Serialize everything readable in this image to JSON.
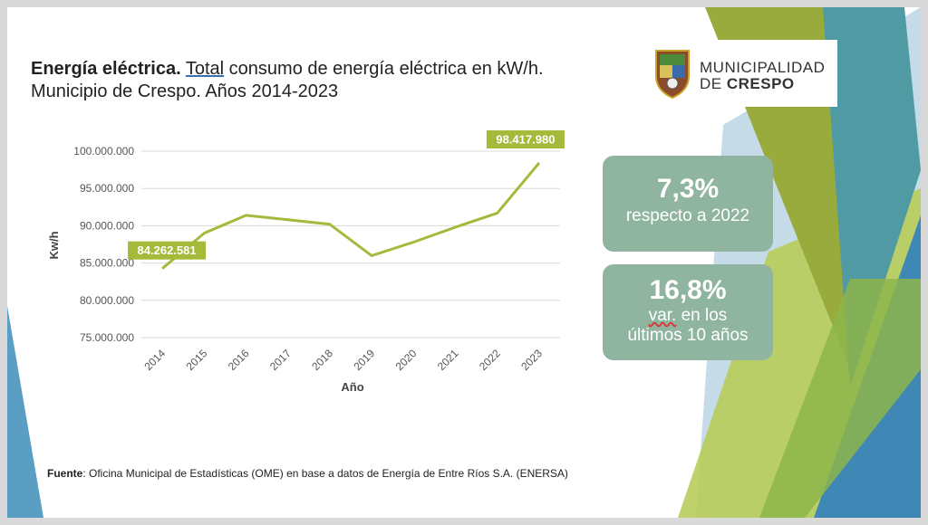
{
  "slide": {
    "title_bold": "Energía eléctrica.",
    "title_underlined": "Total",
    "title_rest_line1": " consumo de energía eléctrica en kW/h.",
    "title_line2": "Municipio de Crespo. Años 2014-2023",
    "logo": {
      "line1": "MUNICIPALIDAD",
      "line2_prefix": "DE ",
      "line2_bold": "CRESPO"
    },
    "kpis": [
      {
        "value": "7,3%",
        "caption": "respecto a 2022"
      },
      {
        "value": "16,8%",
        "caption_underlined": "var.",
        "caption_rest": " en los",
        "caption_line2": "últimos 10 años"
      }
    ],
    "source_label": "Fuente",
    "source_text": ": Oficina Municipal de Estadísticas (OME) en base a datos de Energía de Entre Ríos S.A. (ENERSA)",
    "colors": {
      "line": "#a5b93b",
      "kpi_bg": "#8fb5a0",
      "grid": "#d9d9d9"
    }
  },
  "chart_data": {
    "type": "line",
    "x": [
      "2014",
      "2015",
      "2016",
      "2017",
      "2018",
      "2019",
      "2020",
      "2021",
      "2022",
      "2023"
    ],
    "series": [
      {
        "values": [
          84262581,
          89000000,
          91400000,
          90800000,
          90200000,
          86000000,
          87800000,
          89800000,
          91700000,
          98417980
        ]
      }
    ],
    "data_labels": [
      {
        "index": 0,
        "text": "84.262.581"
      },
      {
        "index": 9,
        "text": "98.417.980"
      }
    ],
    "y_ticks": [
      "75.000.000",
      "80.000.000",
      "85.000.000",
      "90.000.000",
      "95.000.000",
      "100.000.000"
    ],
    "y_tick_values": [
      75000000,
      80000000,
      85000000,
      90000000,
      95000000,
      100000000
    ],
    "ylim": [
      75000000,
      100000000
    ],
    "xlabel": "Año",
    "ylabel": "Kw/h",
    "grid": true
  }
}
